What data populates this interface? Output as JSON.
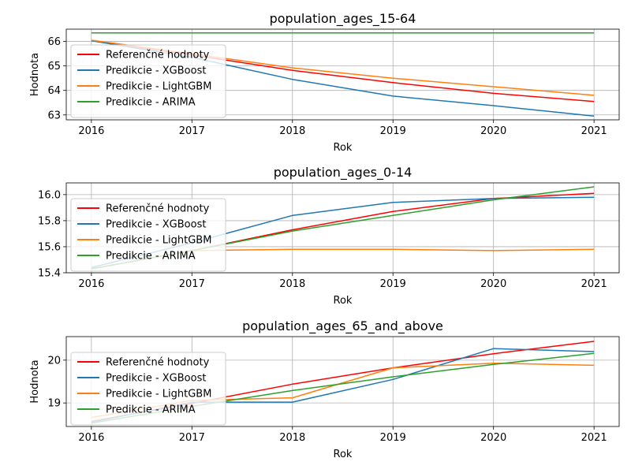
{
  "chart_data": [
    {
      "type": "line",
      "title": "population_ages_15-64",
      "xlabel": "Rok",
      "ylabel": "Hodnota",
      "x": [
        2016,
        2017,
        2018,
        2019,
        2020,
        2021
      ],
      "xlim": [
        2015.75,
        2021.25
      ],
      "ylim": [
        62.8,
        66.5
      ],
      "yticks": [
        63,
        64,
        65,
        66
      ],
      "yticklabels": [
        "63",
        "64",
        "65",
        "66"
      ],
      "grid": true,
      "legend_position": "left",
      "series": [
        {
          "name": "Referenčné hodnoty",
          "color": "#ff0000",
          "values": [
            66.03,
            65.45,
            64.82,
            64.32,
            63.88,
            63.55
          ]
        },
        {
          "name": "Predikcie - XGBoost",
          "color": "#1f77b4",
          "values": [
            66.03,
            65.35,
            64.45,
            63.77,
            63.38,
            62.95
          ]
        },
        {
          "name": "Predikcie - LightGBM",
          "color": "#ff7f0e",
          "values": [
            66.05,
            65.5,
            64.92,
            64.5,
            64.15,
            63.8
          ]
        },
        {
          "name": "Predikcie - ARIMA",
          "color": "#2ca02c",
          "values": [
            66.35,
            66.35,
            66.35,
            66.35,
            66.35,
            66.35
          ]
        }
      ]
    },
    {
      "type": "line",
      "title": "population_ages_0-14",
      "xlabel": "Rok",
      "ylabel": "",
      "x": [
        2016,
        2017,
        2018,
        2019,
        2020,
        2021
      ],
      "xlim": [
        2015.75,
        2021.25
      ],
      "ylim": [
        15.4,
        16.09
      ],
      "yticks": [
        15.4,
        15.6,
        15.8,
        16.0
      ],
      "yticklabels": [
        "15.4",
        "15.6",
        "15.8",
        "16.0"
      ],
      "grid": true,
      "legend_position": "left",
      "series": [
        {
          "name": "Referenčné hodnoty",
          "color": "#ff0000",
          "values": [
            15.43,
            15.57,
            15.73,
            15.87,
            15.97,
            16.01
          ]
        },
        {
          "name": "Predikcie - XGBoost",
          "color": "#1f77b4",
          "values": [
            15.44,
            15.63,
            15.84,
            15.94,
            15.97,
            15.98
          ]
        },
        {
          "name": "Predikcie - LightGBM",
          "color": "#ff7f0e",
          "values": [
            15.43,
            15.57,
            15.58,
            15.58,
            15.57,
            15.58
          ]
        },
        {
          "name": "Predikcie - ARIMA",
          "color": "#2ca02c",
          "values": [
            15.43,
            15.57,
            15.72,
            15.84,
            15.96,
            16.06
          ]
        }
      ]
    },
    {
      "type": "line",
      "title": "population_ages_65_and_above",
      "xlabel": "Rok",
      "ylabel": "Hodnota",
      "x": [
        2016,
        2017,
        2018,
        2019,
        2020,
        2021
      ],
      "xlim": [
        2015.75,
        2021.25
      ],
      "ylim": [
        18.45,
        20.55
      ],
      "yticks": [
        19,
        20
      ],
      "yticklabels": [
        "19",
        "20"
      ],
      "grid": true,
      "legend_position": "left",
      "series": [
        {
          "name": "Referenčné hodnoty",
          "color": "#ff0000",
          "values": [
            18.57,
            18.99,
            19.44,
            19.82,
            20.15,
            20.44
          ]
        },
        {
          "name": "Predikcie - XGBoost",
          "color": "#1f77b4",
          "values": [
            18.55,
            19.02,
            19.02,
            19.55,
            20.27,
            20.2
          ]
        },
        {
          "name": "Predikcie - LightGBM",
          "color": "#ff7f0e",
          "values": [
            18.66,
            19.06,
            19.12,
            19.82,
            19.93,
            19.88
          ]
        },
        {
          "name": "Predikcie - ARIMA",
          "color": "#2ca02c",
          "values": [
            18.53,
            18.92,
            19.29,
            19.61,
            19.9,
            20.16
          ]
        }
      ]
    }
  ]
}
